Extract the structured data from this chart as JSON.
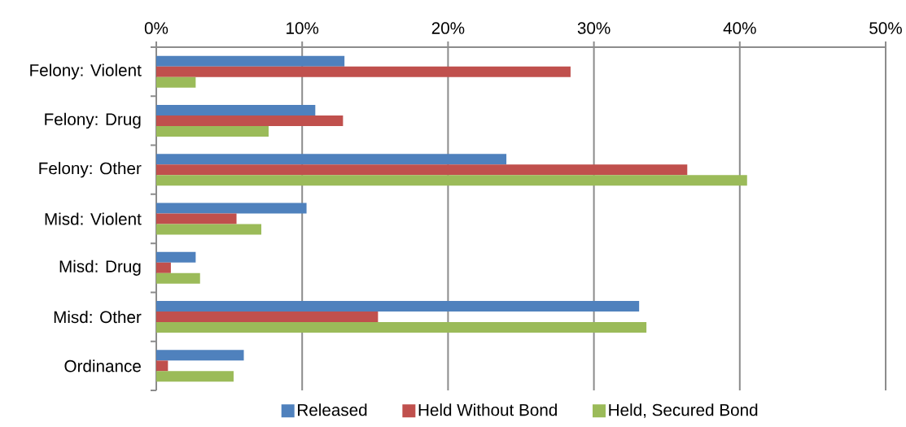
{
  "chart_data": {
    "type": "bar",
    "orientation": "horizontal",
    "categories": [
      "Felony: Violent",
      "Felony: Drug",
      "Felony: Other",
      "Misd: Violent",
      "Misd: Drug",
      "Misd: Other",
      "Ordinance"
    ],
    "series": [
      {
        "name": "Released",
        "color": "#4f81bd",
        "values": [
          12.9,
          10.9,
          24.0,
          10.3,
          2.7,
          33.1,
          6.0
        ]
      },
      {
        "name": "Held Without Bond",
        "color": "#c0504d",
        "values": [
          28.4,
          12.8,
          36.4,
          5.5,
          1.0,
          15.2,
          0.8
        ]
      },
      {
        "name": "Held, Secured Bond",
        "color": "#9bbb59",
        "values": [
          2.7,
          7.7,
          40.5,
          7.2,
          3.0,
          33.6,
          5.3
        ]
      }
    ],
    "xlim": [
      0,
      50
    ],
    "xticks": [
      {
        "value": 0,
        "label": "0%"
      },
      {
        "value": 10,
        "label": "10%"
      },
      {
        "value": 20,
        "label": "20%"
      },
      {
        "value": 30,
        "label": "30%"
      },
      {
        "value": 40,
        "label": "40%"
      },
      {
        "value": 50,
        "label": "50%"
      }
    ],
    "grid": "x",
    "legend": "bottom"
  }
}
